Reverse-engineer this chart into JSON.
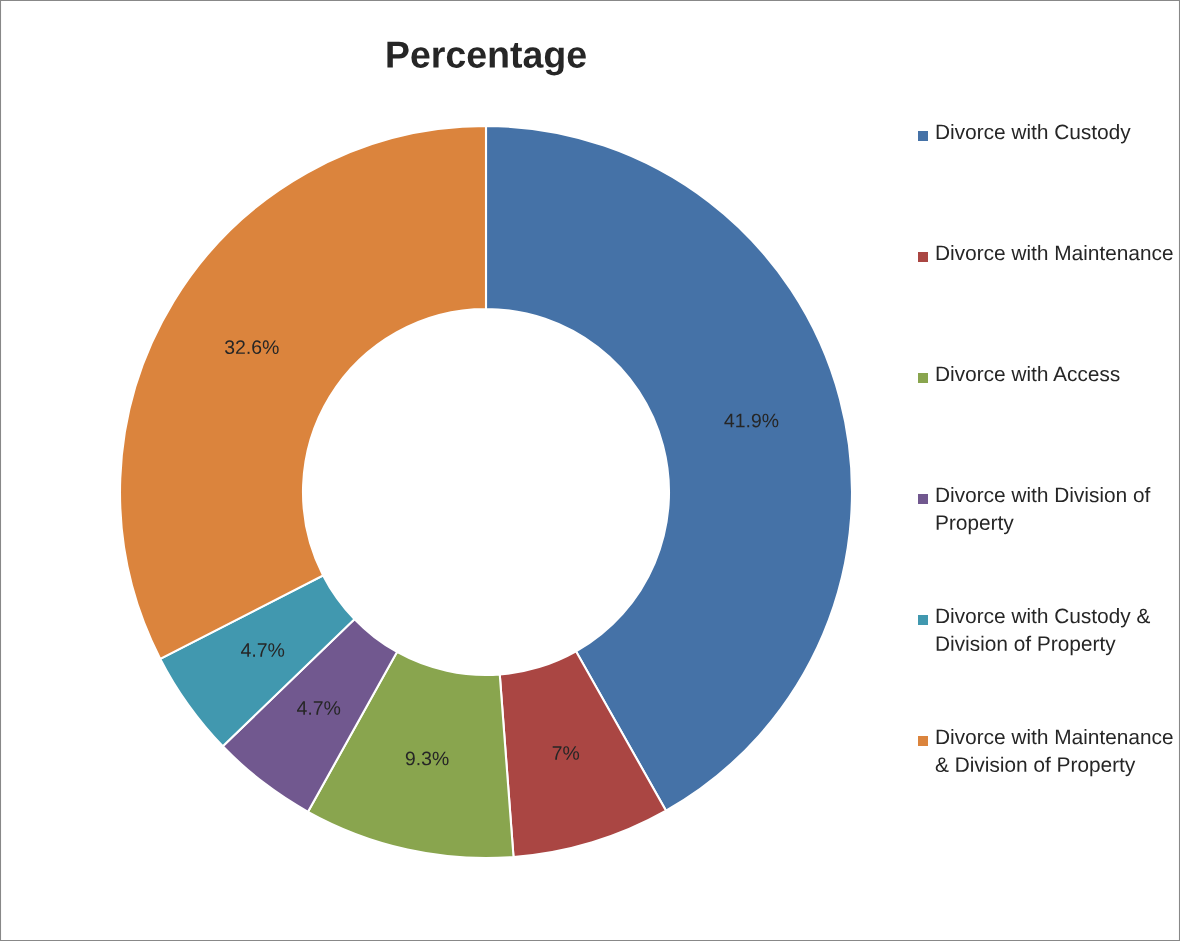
{
  "chart_data": {
    "type": "donut",
    "title": "Percentage",
    "categories": [
      "Divorce with Custody",
      "Divorce with Maintenance",
      "Divorce with Access",
      "Divorce with Division of Property",
      "Divorce with Custody & Division of Property",
      "Divorce with Maintenance & Division of Property"
    ],
    "values": [
      41.9,
      7,
      9.3,
      4.7,
      4.7,
      32.6
    ],
    "value_labels": [
      "41.9%",
      "7%",
      "9.3%",
      "4.7%",
      "4.7%",
      "32.6%"
    ],
    "colors": [
      "#4572a7",
      "#aa4643",
      "#89a54e",
      "#71588f",
      "#4198af",
      "#db843d"
    ],
    "legend": "right"
  }
}
